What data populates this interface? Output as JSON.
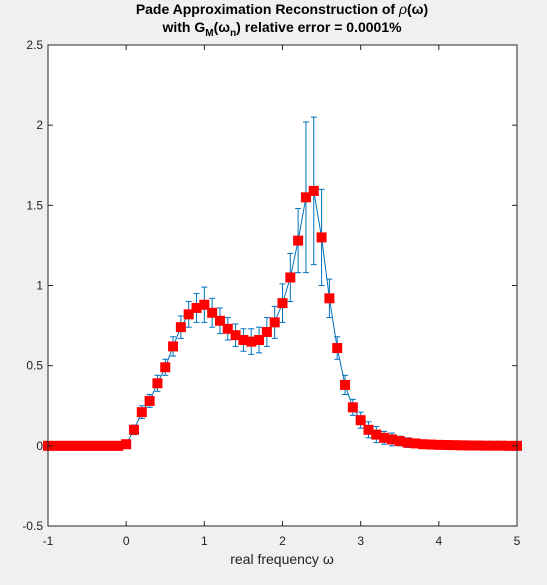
{
  "chart_data": {
    "type": "line",
    "title_parts": {
      "line1_text": "Pade Approximation Reconstruction of ",
      "rho": "ρ",
      "line1_tail": "(ω)",
      "line2_a": "with G",
      "sub_m": "M",
      "line2_b": "(ω",
      "sub_n": "n",
      "line2_c": ") relative error = 0.0001%"
    },
    "xlabel": "real frequency ω",
    "ylabel": "",
    "xlim": [
      -1,
      5
    ],
    "ylim": [
      -0.5,
      2.5
    ],
    "xticks": [
      "-1",
      "0",
      "1",
      "2",
      "3",
      "4",
      "5"
    ],
    "yticks": [
      "-0.5",
      "0",
      "0.5",
      "1",
      "1.5",
      "2",
      "2.5"
    ],
    "grid": false,
    "colors": {
      "marker": "#ff0000",
      "line": "#0072bd",
      "axes": "#262626"
    },
    "series": [
      {
        "x": [
          -1.0,
          -0.9,
          -0.8,
          -0.7,
          -0.6,
          -0.5,
          -0.4,
          -0.3,
          -0.2,
          -0.1,
          0.0,
          0.1,
          0.2,
          0.3,
          0.4,
          0.5,
          0.6,
          0.7,
          0.8,
          0.9,
          1.0,
          1.1,
          1.2,
          1.3,
          1.4,
          1.5,
          1.6,
          1.7,
          1.8,
          1.9,
          2.0,
          2.1,
          2.2,
          2.3,
          2.4,
          2.5,
          2.6,
          2.7,
          2.8,
          2.9,
          3.0,
          3.1,
          3.2,
          3.3,
          3.4,
          3.5,
          3.6,
          3.7,
          3.8,
          3.9,
          4.0,
          4.1,
          4.2,
          4.3,
          4.4,
          4.5,
          4.6,
          4.7,
          4.8,
          4.9,
          5.0
        ],
        "y": [
          0.0,
          0.0,
          0.0,
          0.0,
          0.0,
          0.0,
          0.0,
          0.0,
          0.0,
          0.0,
          0.01,
          0.1,
          0.21,
          0.28,
          0.39,
          0.49,
          0.62,
          0.74,
          0.82,
          0.86,
          0.88,
          0.83,
          0.78,
          0.73,
          0.69,
          0.66,
          0.65,
          0.66,
          0.71,
          0.77,
          0.89,
          1.05,
          1.28,
          1.55,
          1.59,
          1.3,
          0.92,
          0.61,
          0.38,
          0.24,
          0.16,
          0.1,
          0.07,
          0.05,
          0.04,
          0.03,
          0.02,
          0.015,
          0.01,
          0.008,
          0.006,
          0.005,
          0.004,
          0.003,
          0.002,
          0.002,
          0.001,
          0.001,
          0.001,
          0.0,
          0.0
        ],
        "err": [
          0.0,
          0.0,
          0.0,
          0.0,
          0.0,
          0.0,
          0.0,
          0.0,
          0.0,
          0.0,
          0.02,
          0.03,
          0.04,
          0.04,
          0.05,
          0.05,
          0.06,
          0.07,
          0.08,
          0.09,
          0.11,
          0.09,
          0.08,
          0.07,
          0.07,
          0.07,
          0.08,
          0.08,
          0.09,
          0.1,
          0.12,
          0.15,
          0.2,
          0.47,
          0.46,
          0.3,
          0.12,
          0.07,
          0.06,
          0.05,
          0.05,
          0.05,
          0.05,
          0.04,
          0.04,
          0.03,
          0.03,
          0.02,
          0.02,
          0.02,
          0.015,
          0.015,
          0.01,
          0.01,
          0.01,
          0.01,
          0.01,
          0.01,
          0.01,
          0.01,
          0.01
        ]
      }
    ]
  }
}
